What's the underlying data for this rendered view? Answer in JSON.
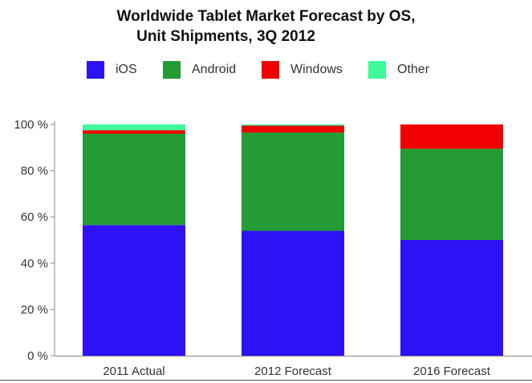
{
  "chart_data": {
    "type": "bar",
    "stacked": true,
    "title_lines": [
      "Worldwide Tablet Market Forecast by OS,",
      "Unit Shipments, 3Q 2012"
    ],
    "categories": [
      "2011 Actual",
      "2012 Forecast",
      "2016 Forecast"
    ],
    "series": [
      {
        "name": "iOS",
        "color": "#2d12f6",
        "values": [
          56.5,
          54,
          50
        ]
      },
      {
        "name": "Android",
        "color": "#249b35",
        "values": [
          39.5,
          42.5,
          39.5
        ]
      },
      {
        "name": "Windows",
        "color": "#f00000",
        "values": [
          1.5,
          3,
          10.5
        ]
      },
      {
        "name": "Other",
        "color": "#3ffa9a",
        "values": [
          2.5,
          0.5,
          0
        ]
      }
    ],
    "ylim": [
      0,
      100
    ],
    "yticks": [
      "0 %",
      "20 %",
      "40 %",
      "60 %",
      "80 %",
      "100 %"
    ],
    "ytick_values": [
      0,
      20,
      40,
      60,
      80,
      100
    ],
    "legend_position": "top",
    "grid": false
  }
}
